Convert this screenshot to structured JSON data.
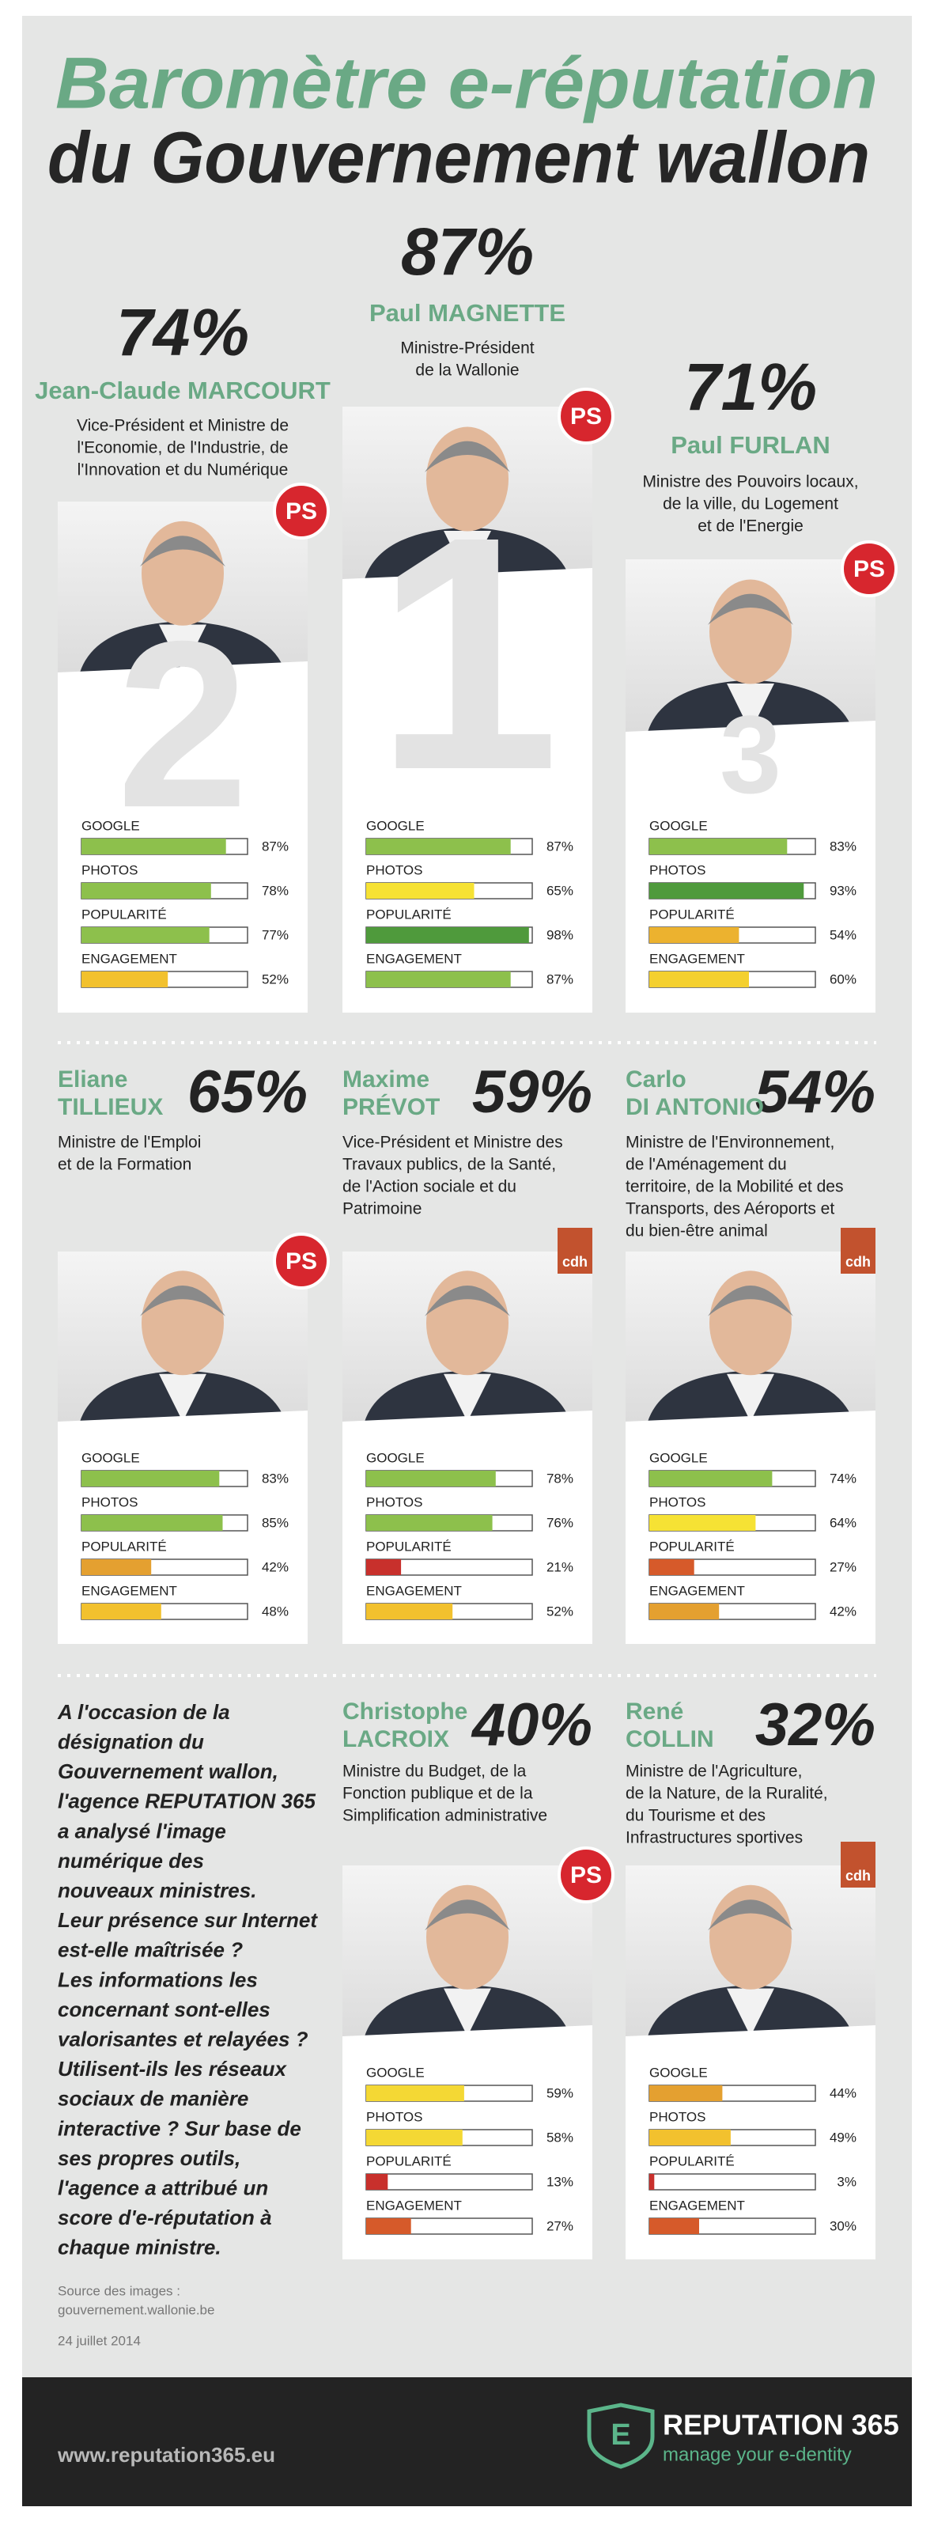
{
  "header": {
    "title_line1": "Baromètre e-réputation",
    "title_line2": "du Gouvernement wallon"
  },
  "metrics": [
    "GOOGLE",
    "PHOTOS",
    "POPULARITÉ",
    "ENGAGEMENT"
  ],
  "ministers": [
    {
      "score": "74%",
      "name_lines": [
        "Jean-Claude MARCOURT"
      ],
      "role_lines": [
        "Vice-Président et Ministre de",
        "l'Economie, de l'Industrie, de",
        "l'Innovation et du Numérique"
      ],
      "party": "PS",
      "rank": "2",
      "bars": {
        "values": [
          87,
          78,
          77,
          52
        ],
        "value_labels": [
          "87%",
          "78%",
          "77%",
          "52%"
        ],
        "colors": [
          "#8dc04c",
          "#8dc04c",
          "#8dc04c",
          "#f2c12e"
        ]
      }
    },
    {
      "score": "87%",
      "name_lines": [
        "Paul MAGNETTE"
      ],
      "role_lines": [
        "Ministre-Président",
        "de la Wallonie"
      ],
      "party": "PS",
      "rank": "1",
      "bars": {
        "values": [
          87,
          65,
          98,
          87
        ],
        "value_labels": [
          "87%",
          "65%",
          "98%",
          "87%"
        ],
        "colors": [
          "#8dc04c",
          "#f6e234",
          "#4f9a3c",
          "#8dc04c"
        ]
      }
    },
    {
      "score": "71%",
      "name_lines": [
        "Paul FURLAN"
      ],
      "role_lines": [
        "Ministre des Pouvoirs locaux,",
        "de la ville, du Logement",
        "et de l'Energie"
      ],
      "party": "PS",
      "rank": "3",
      "bars": {
        "values": [
          83,
          93,
          54,
          60
        ],
        "value_labels": [
          "83%",
          "93%",
          "54%",
          "60%"
        ],
        "colors": [
          "#8dc04c",
          "#4f9a3c",
          "#ecb22f",
          "#f4d02f"
        ]
      }
    },
    {
      "score": "65%",
      "name_lines": [
        "Eliane",
        "TILLIEUX"
      ],
      "role_lines": [
        "Ministre de l'Emploi",
        "et de la Formation"
      ],
      "party": "PS",
      "bars": {
        "values": [
          83,
          85,
          42,
          48
        ],
        "value_labels": [
          "83%",
          "85%",
          "42%",
          "48%"
        ],
        "colors": [
          "#8dc04c",
          "#8dc04c",
          "#e4a030",
          "#f2c12e"
        ]
      }
    },
    {
      "score": "59%",
      "name_lines": [
        "Maxime",
        "PRÉVOT"
      ],
      "role_lines": [
        "Vice-Président et Ministre des",
        "Travaux publics, de la Santé,",
        "de l'Action sociale et du",
        "Patrimoine"
      ],
      "party": "cdh",
      "bars": {
        "values": [
          78,
          76,
          21,
          52
        ],
        "value_labels": [
          "78%",
          "76%",
          "21%",
          "52%"
        ],
        "colors": [
          "#8dc04c",
          "#8dc04c",
          "#c8302c",
          "#f2c12e"
        ]
      }
    },
    {
      "score": "54%",
      "name_lines": [
        "Carlo",
        "DI ANTONIO"
      ],
      "role_lines": [
        "Ministre de l'Environnement,",
        "de l'Aménagement du",
        "territoire, de la Mobilité et des",
        "Transports, des Aéroports et",
        "du bien-être animal"
      ],
      "party": "cdh",
      "bars": {
        "values": [
          74,
          64,
          27,
          42
        ],
        "value_labels": [
          "74%",
          "64%",
          "27%",
          "42%"
        ],
        "colors": [
          "#8dc04c",
          "#f6e234",
          "#d65a2a",
          "#e4a030"
        ]
      }
    },
    {
      "score": "40%",
      "name_lines": [
        "Christophe",
        "LACROIX"
      ],
      "role_lines": [
        "Ministre du Budget, de la",
        "Fonction publique et de la",
        "Simplification administrative"
      ],
      "party": "PS",
      "bars": {
        "values": [
          59,
          58,
          13,
          27
        ],
        "value_labels": [
          "59%",
          "58%",
          "13%",
          "27%"
        ],
        "colors": [
          "#f4d834",
          "#f4d834",
          "#c8302c",
          "#d65a2a"
        ]
      }
    },
    {
      "score": "32%",
      "name_lines": [
        "René",
        "COLLIN"
      ],
      "role_lines": [
        "Ministre de l'Agriculture,",
        "de la Nature, de la Ruralité,",
        "du Tourisme et des",
        "Infrastructures sportives"
      ],
      "party": "cdh",
      "bars": {
        "values": [
          44,
          49,
          3,
          30
        ],
        "value_labels": [
          "44%",
          "49%",
          "3%",
          "30%"
        ],
        "colors": [
          "#e4a030",
          "#f2c12e",
          "#c8302c",
          "#d65a2a"
        ]
      }
    }
  ],
  "intro_lines": [
    "A l'occasion de la",
    "désignation du",
    "Gouvernement wallon,",
    "l'agence REPUTATION 365",
    "a analysé l'image",
    "numérique des",
    "nouveaux ministres.",
    "Leur présence sur Internet",
    "est-elle maîtrisée ?",
    "Les informations les",
    "concernant sont-elles",
    "valorisantes et relayées ?",
    "Utilisent-ils les réseaux",
    "sociaux de manière",
    "interactive ? Sur base de",
    "ses propres outils,",
    "l'agence a attribué un",
    "score d'e-réputation à",
    "chaque ministre."
  ],
  "source_lines": [
    "Source des images :",
    "gouvernement.wallonie.be"
  ],
  "date": "24 juillet 2014",
  "footer": {
    "url": "www.reputation365.eu",
    "brand": "REPUTATION 365",
    "tagline": "manage your e-dentity",
    "logo_letter": "E"
  }
}
